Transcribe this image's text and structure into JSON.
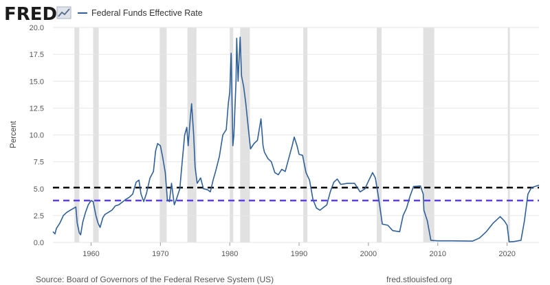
{
  "header": {
    "logo_text": "FRED",
    "legend_label": "Federal Funds Effective Rate"
  },
  "footer": {
    "source": "Source: Board of Governors of the Federal Reserve System (US)",
    "site": "fred.stlouisfed.org"
  },
  "colors": {
    "series": "#2f5f98",
    "recession": "#e1e1e1",
    "black_dash": "#000000",
    "purple_dash": "#5b3df5",
    "grid": "#e6e6e6"
  },
  "chart_data": {
    "type": "line",
    "title": "Federal Funds Effective Rate",
    "ylabel": "Percent",
    "xlabel": "",
    "xlim": [
      1954.5,
      2024.6
    ],
    "ylim": [
      0,
      20
    ],
    "grid": "horizontal",
    "legend_position": "top-left",
    "yticks": [
      "0.0",
      "2.5",
      "5.0",
      "7.5",
      "10.0",
      "12.5",
      "15.0",
      "17.5",
      "20.0"
    ],
    "xticks": [
      "1960",
      "1970",
      "1980",
      "1990",
      "2000",
      "2010",
      "2020"
    ],
    "recessions": [
      [
        1957.6,
        1958.3
      ],
      [
        1960.3,
        1961.1
      ],
      [
        1969.9,
        1970.9
      ],
      [
        1973.9,
        1975.2
      ],
      [
        1980.0,
        1980.5
      ],
      [
        1981.5,
        1982.9
      ],
      [
        1990.6,
        1991.2
      ],
      [
        2001.2,
        2001.9
      ],
      [
        2007.9,
        2009.5
      ],
      [
        2020.1,
        2020.4
      ]
    ],
    "reference_lines": [
      {
        "value": 5.1,
        "color": "#000000"
      },
      {
        "value": 3.9,
        "color": "#5b3df5"
      }
    ],
    "series": [
      {
        "name": "Federal Funds Effective Rate",
        "points": [
          [
            1954.5,
            1.0
          ],
          [
            1954.8,
            0.8
          ],
          [
            1955.0,
            1.3
          ],
          [
            1955.5,
            1.8
          ],
          [
            1956.0,
            2.5
          ],
          [
            1956.5,
            2.8
          ],
          [
            1957.0,
            3.0
          ],
          [
            1957.8,
            3.3
          ],
          [
            1958.0,
            1.8
          ],
          [
            1958.3,
            0.9
          ],
          [
            1958.5,
            0.7
          ],
          [
            1958.8,
            1.9
          ],
          [
            1959.2,
            2.8
          ],
          [
            1959.6,
            3.5
          ],
          [
            1960.0,
            3.9
          ],
          [
            1960.3,
            3.8
          ],
          [
            1960.7,
            2.5
          ],
          [
            1961.0,
            1.8
          ],
          [
            1961.3,
            1.4
          ],
          [
            1961.7,
            2.3
          ],
          [
            1962.0,
            2.6
          ],
          [
            1962.5,
            2.8
          ],
          [
            1963.0,
            3.0
          ],
          [
            1963.5,
            3.4
          ],
          [
            1964.0,
            3.5
          ],
          [
            1965.0,
            4.0
          ],
          [
            1965.5,
            4.2
          ],
          [
            1966.0,
            4.5
          ],
          [
            1966.5,
            5.6
          ],
          [
            1966.9,
            5.8
          ],
          [
            1967.2,
            4.5
          ],
          [
            1967.6,
            3.8
          ],
          [
            1968.0,
            4.6
          ],
          [
            1968.5,
            6.0
          ],
          [
            1969.0,
            6.6
          ],
          [
            1969.3,
            8.5
          ],
          [
            1969.6,
            9.2
          ],
          [
            1970.0,
            9.0
          ],
          [
            1970.3,
            8.0
          ],
          [
            1970.7,
            6.5
          ],
          [
            1971.0,
            4.0
          ],
          [
            1971.3,
            3.8
          ],
          [
            1971.6,
            5.5
          ],
          [
            1972.0,
            3.5
          ],
          [
            1972.3,
            4.0
          ],
          [
            1972.8,
            5.0
          ],
          [
            1973.0,
            6.5
          ],
          [
            1973.5,
            10.0
          ],
          [
            1973.8,
            10.7
          ],
          [
            1974.0,
            9.0
          ],
          [
            1974.3,
            11.5
          ],
          [
            1974.5,
            12.9
          ],
          [
            1974.8,
            10.0
          ],
          [
            1975.0,
            7.0
          ],
          [
            1975.3,
            5.5
          ],
          [
            1975.8,
            6.0
          ],
          [
            1976.2,
            5.0
          ],
          [
            1976.8,
            4.9
          ],
          [
            1977.2,
            4.7
          ],
          [
            1977.6,
            5.8
          ],
          [
            1978.0,
            6.7
          ],
          [
            1978.5,
            8.0
          ],
          [
            1979.0,
            10.0
          ],
          [
            1979.5,
            10.5
          ],
          [
            1979.8,
            13.0
          ],
          [
            1980.0,
            14.0
          ],
          [
            1980.2,
            17.6
          ],
          [
            1980.45,
            9.0
          ],
          [
            1980.6,
            10.0
          ],
          [
            1980.9,
            15.0
          ],
          [
            1981.0,
            19.0
          ],
          [
            1981.2,
            15.0
          ],
          [
            1981.5,
            19.1
          ],
          [
            1981.7,
            15.5
          ],
          [
            1982.0,
            14.5
          ],
          [
            1982.3,
            13.0
          ],
          [
            1982.7,
            10.5
          ],
          [
            1983.0,
            8.7
          ],
          [
            1983.5,
            9.2
          ],
          [
            1984.0,
            9.5
          ],
          [
            1984.5,
            11.5
          ],
          [
            1984.8,
            9.0
          ],
          [
            1985.0,
            8.4
          ],
          [
            1985.5,
            7.8
          ],
          [
            1986.0,
            7.5
          ],
          [
            1986.5,
            6.5
          ],
          [
            1987.0,
            6.3
          ],
          [
            1987.5,
            6.8
          ],
          [
            1988.0,
            6.6
          ],
          [
            1988.5,
            7.8
          ],
          [
            1989.0,
            9.0
          ],
          [
            1989.3,
            9.8
          ],
          [
            1989.7,
            9.0
          ],
          [
            1990.0,
            8.2
          ],
          [
            1990.5,
            8.1
          ],
          [
            1991.0,
            6.5
          ],
          [
            1991.5,
            5.8
          ],
          [
            1992.0,
            4.0
          ],
          [
            1992.5,
            3.2
          ],
          [
            1993.0,
            3.0
          ],
          [
            1994.0,
            3.5
          ],
          [
            1994.5,
            4.7
          ],
          [
            1995.0,
            5.6
          ],
          [
            1995.5,
            5.9
          ],
          [
            1996.0,
            5.4
          ],
          [
            1997.0,
            5.5
          ],
          [
            1998.0,
            5.5
          ],
          [
            1998.8,
            4.7
          ],
          [
            1999.5,
            5.0
          ],
          [
            2000.0,
            5.7
          ],
          [
            2000.6,
            6.5
          ],
          [
            2001.0,
            6.0
          ],
          [
            2001.5,
            4.0
          ],
          [
            2002.0,
            1.7
          ],
          [
            2002.8,
            1.6
          ],
          [
            2003.5,
            1.1
          ],
          [
            2004.5,
            1.0
          ],
          [
            2005.0,
            2.5
          ],
          [
            2005.5,
            3.2
          ],
          [
            2006.0,
            4.3
          ],
          [
            2006.5,
            5.2
          ],
          [
            2007.5,
            5.25
          ],
          [
            2007.9,
            4.5
          ],
          [
            2008.0,
            3.0
          ],
          [
            2008.5,
            2.0
          ],
          [
            2009.0,
            0.2
          ],
          [
            2010.0,
            0.15
          ],
          [
            2012.0,
            0.15
          ],
          [
            2015.0,
            0.12
          ],
          [
            2016.0,
            0.4
          ],
          [
            2017.0,
            1.0
          ],
          [
            2018.0,
            1.8
          ],
          [
            2019.0,
            2.4
          ],
          [
            2019.6,
            2.0
          ],
          [
            2020.0,
            1.6
          ],
          [
            2020.3,
            0.05
          ],
          [
            2021.0,
            0.08
          ],
          [
            2022.0,
            0.2
          ],
          [
            2022.5,
            2.0
          ],
          [
            2023.0,
            4.5
          ],
          [
            2023.5,
            5.1
          ],
          [
            2024.6,
            5.33
          ]
        ]
      }
    ]
  }
}
